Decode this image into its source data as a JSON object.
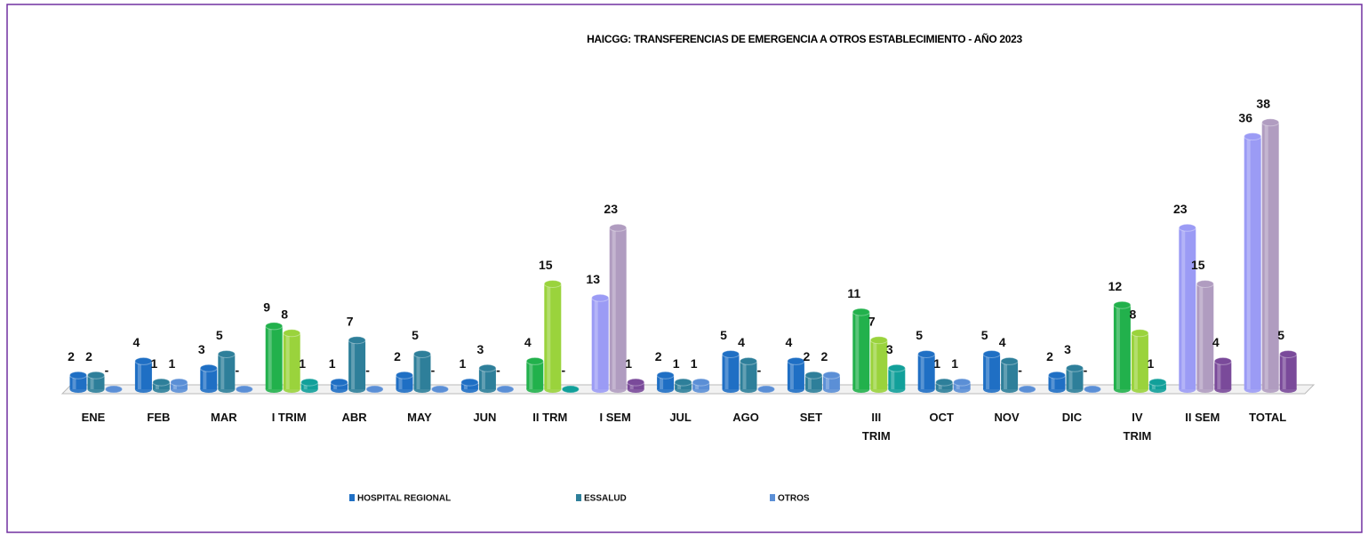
{
  "chart_data": {
    "type": "bar3d",
    "title": "HAICGG: TRANSFERENCIAS DE EMERGENCIA A OTROS ESTABLECIMIENTO - AÑO 2023",
    "categories": [
      "ENE",
      "FEB",
      "MAR",
      "I TRIM",
      "ABR",
      "MAY",
      "JUN",
      "II TRM",
      "I SEM",
      "JUL",
      "AGO",
      "SET",
      "III TRIM",
      "OCT",
      "NOV",
      "DIC",
      "IV TRIM",
      "II SEM",
      "TOTAL"
    ],
    "series": [
      {
        "name": "HOSPITAL REGIONAL",
        "color": "#1f6fc4",
        "values": [
          2,
          4,
          3,
          9,
          1,
          2,
          1,
          4,
          13,
          2,
          5,
          4,
          11,
          5,
          5,
          2,
          12,
          23,
          36
        ],
        "colors": [
          "#1f6fc4",
          "#1f6fc4",
          "#1f6fc4",
          "#22b14c",
          "#1f6fc4",
          "#1f6fc4",
          "#1f6fc4",
          "#22b14c",
          "#9b9bf5",
          "#1f6fc4",
          "#1f6fc4",
          "#1f6fc4",
          "#22b14c",
          "#1f6fc4",
          "#1f6fc4",
          "#1f6fc4",
          "#22b14c",
          "#9b9bf5",
          "#9b9bf5"
        ]
      },
      {
        "name": "ESSALUD",
        "color": "#2e7f9a",
        "values": [
          2,
          1,
          5,
          8,
          7,
          5,
          3,
          15,
          23,
          1,
          4,
          2,
          7,
          1,
          4,
          3,
          8,
          15,
          38
        ],
        "colors": [
          "#2e7f9a",
          "#2e7f9a",
          "#2e7f9a",
          "#9ad33c",
          "#2e7f9a",
          "#2e7f9a",
          "#2e7f9a",
          "#9ad33c",
          "#b09cc0",
          "#2e7f9a",
          "#2e7f9a",
          "#2e7f9a",
          "#9ad33c",
          "#2e7f9a",
          "#2e7f9a",
          "#2e7f9a",
          "#9ad33c",
          "#b09cc0",
          "#b09cc0"
        ]
      },
      {
        "name": "OTROS",
        "color": "#5b8fd6",
        "values": [
          0,
          1,
          0,
          1,
          0,
          0,
          0,
          0,
          1,
          1,
          0,
          2,
          3,
          1,
          0,
          0,
          1,
          4,
          5
        ],
        "value_labels": [
          "-",
          "1",
          "-",
          "1",
          "-",
          "-",
          "-",
          "-",
          "1",
          "1",
          "-",
          "2",
          "3",
          "1",
          "-",
          "-",
          "1",
          "4",
          "5"
        ],
        "colors": [
          "#5b8fd6",
          "#5b8fd6",
          "#5b8fd6",
          "#12a09a",
          "#5b8fd6",
          "#5b8fd6",
          "#5b8fd6",
          "#12a09a",
          "#7a4a9a",
          "#5b8fd6",
          "#5b8fd6",
          "#5b8fd6",
          "#12a09a",
          "#5b8fd6",
          "#5b8fd6",
          "#5b8fd6",
          "#12a09a",
          "#7a4a9a",
          "#7a4a9a"
        ]
      }
    ]
  }
}
